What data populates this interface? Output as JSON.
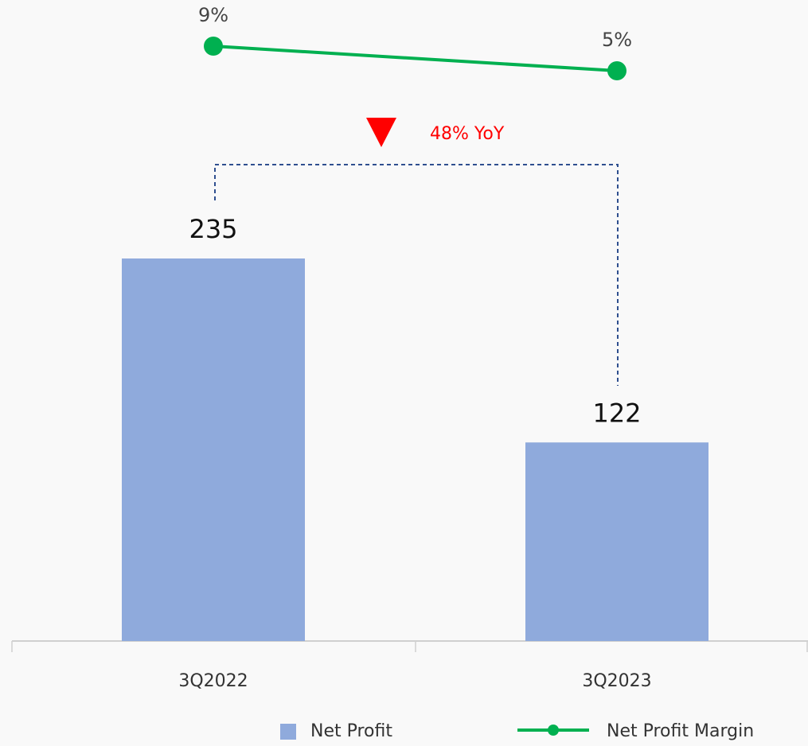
{
  "chart_data": {
    "type": "combo",
    "categories": [
      "3Q2022",
      "3Q2023"
    ],
    "series": [
      {
        "name": "Net Profit",
        "type": "bar",
        "color": "#8faadc",
        "values": [
          235,
          122
        ]
      },
      {
        "name": "Net Profit Margin",
        "type": "line",
        "axis": "y2",
        "color": "#00b050",
        "values": [
          9,
          5
        ],
        "value_labels": [
          "9%",
          "5%"
        ]
      }
    ],
    "ylim": [
      0,
      300
    ],
    "y2lim": [
      0,
      10
    ],
    "annotation": "48% YoY",
    "annotation_color": "#ff0000"
  }
}
